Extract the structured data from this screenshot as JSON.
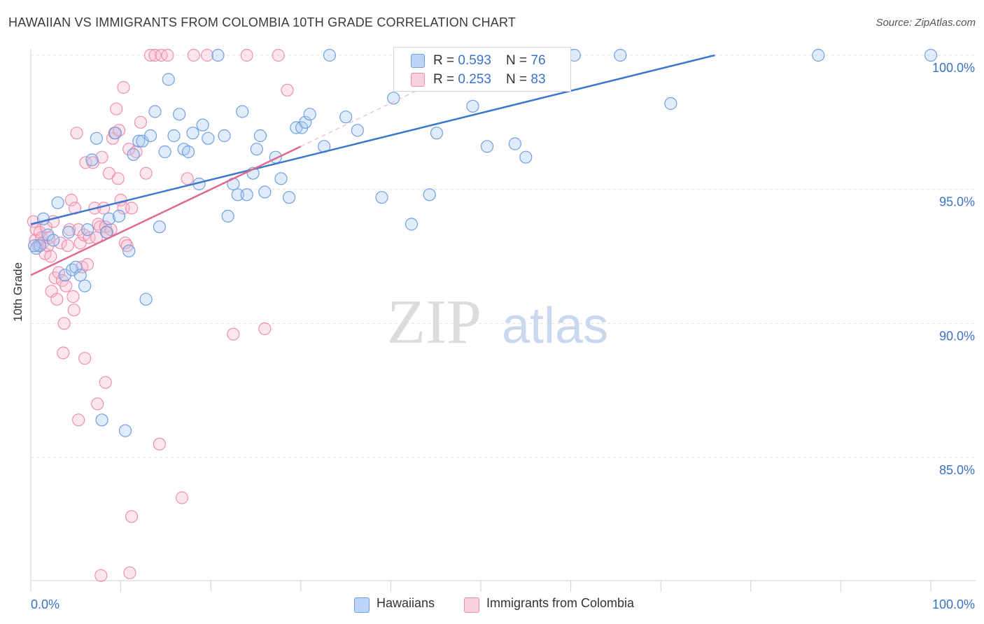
{
  "title": "HAWAIIAN VS IMMIGRANTS FROM COLOMBIA 10TH GRADE CORRELATION CHART",
  "source": "Source: ZipAtlas.com",
  "watermark": {
    "zip": "ZIP",
    "atlas": "atlas"
  },
  "legend_top": [
    {
      "r_label": "R = ",
      "r_value": "0.593",
      "n_label": "N = ",
      "n_value": "76",
      "color": "#a9c8f2"
    },
    {
      "r_label": "R = ",
      "r_value": "0.253",
      "n_label": "N = ",
      "n_value": "83",
      "color": "#f7b8cc"
    }
  ],
  "bottom_legend": [
    "Hawaiians",
    "Immigrants from Colombia"
  ],
  "chart_data": {
    "type": "scatter",
    "title": "HAWAIIAN VS IMMIGRANTS FROM COLOMBIA 10TH GRADE CORRELATION CHART",
    "xlabel": "",
    "ylabel": "10th Grade",
    "xlim": [
      0,
      100
    ],
    "ylim": [
      80.5,
      100.3
    ],
    "x_tick_labels": [
      "0.0%",
      "100.0%"
    ],
    "y_ticks": [
      85.0,
      90.0,
      95.0,
      100.0
    ],
    "y_tick_labels": [
      "85.0%",
      "90.0%",
      "95.0%",
      "100.0%"
    ],
    "grid": true,
    "legend_position": "top-center",
    "colors": {
      "Hawaiians": "#6f9fe0",
      "Immigrants from Colombia": "#ec8fae",
      "blue_line": "#3b78cc",
      "pink_line": "#e0698f"
    },
    "series": [
      {
        "name": "Hawaiians",
        "r": 0.593,
        "n": 76,
        "trend": {
          "x": [
            0,
            76
          ],
          "y": [
            93.7,
            100.0
          ]
        },
        "points": [
          [
            0.6,
            92.8
          ],
          [
            1.0,
            92.9
          ],
          [
            1.4,
            93.9
          ],
          [
            1.9,
            93.3
          ],
          [
            2.5,
            93.1
          ],
          [
            3.0,
            94.5
          ],
          [
            3.8,
            91.8
          ],
          [
            4.2,
            93.4
          ],
          [
            4.6,
            92.0
          ],
          [
            5.0,
            92.1
          ],
          [
            5.5,
            91.8
          ],
          [
            6.0,
            91.4
          ],
          [
            6.3,
            93.5
          ],
          [
            6.8,
            96.1
          ],
          [
            7.3,
            96.9
          ],
          [
            7.9,
            86.4
          ],
          [
            8.4,
            93.4
          ],
          [
            8.7,
            93.9
          ],
          [
            9.4,
            97.1
          ],
          [
            9.8,
            94.0
          ],
          [
            10.5,
            86.0
          ],
          [
            10.9,
            92.7
          ],
          [
            11.4,
            96.3
          ],
          [
            12.0,
            96.8
          ],
          [
            12.4,
            96.8
          ],
          [
            12.8,
            90.9
          ],
          [
            13.3,
            97.0
          ],
          [
            13.8,
            97.9
          ],
          [
            14.3,
            93.6
          ],
          [
            14.9,
            96.4
          ],
          [
            15.3,
            99.1
          ],
          [
            15.9,
            97.0
          ],
          [
            16.5,
            97.8
          ],
          [
            17.0,
            96.5
          ],
          [
            17.5,
            96.4
          ],
          [
            18.0,
            97.1
          ],
          [
            18.7,
            95.2
          ],
          [
            19.1,
            97.4
          ],
          [
            19.7,
            96.9
          ],
          [
            20.8,
            100.0
          ],
          [
            21.5,
            97.0
          ],
          [
            21.9,
            94.0
          ],
          [
            22.5,
            95.2
          ],
          [
            23.0,
            94.8
          ],
          [
            23.5,
            97.9
          ],
          [
            24.0,
            94.8
          ],
          [
            24.7,
            95.6
          ],
          [
            25.1,
            96.5
          ],
          [
            25.5,
            97.0
          ],
          [
            26.0,
            94.9
          ],
          [
            27.2,
            96.2
          ],
          [
            27.8,
            95.4
          ],
          [
            28.7,
            94.7
          ],
          [
            29.5,
            97.3
          ],
          [
            30.1,
            97.3
          ],
          [
            30.5,
            97.5
          ],
          [
            31.0,
            97.8
          ],
          [
            32.6,
            96.6
          ],
          [
            33.2,
            100.0
          ],
          [
            35.0,
            97.7
          ],
          [
            36.3,
            97.2
          ],
          [
            39.0,
            94.7
          ],
          [
            40.3,
            98.4
          ],
          [
            42.3,
            93.7
          ],
          [
            44.3,
            94.8
          ],
          [
            45.1,
            97.1
          ],
          [
            49.1,
            98.1
          ],
          [
            50.7,
            96.6
          ],
          [
            53.8,
            96.7
          ],
          [
            55.0,
            96.2
          ],
          [
            60.4,
            100.0
          ],
          [
            65.5,
            100.0
          ],
          [
            71.1,
            98.2
          ],
          [
            87.5,
            100.0
          ],
          [
            100.0,
            100.0
          ],
          [
            0.4,
            92.9
          ]
        ]
      },
      {
        "name": "Immigrants from Colombia",
        "r": 0.253,
        "n": 83,
        "trend": {
          "x": [
            0,
            30
          ],
          "y": [
            91.8,
            96.6
          ]
        },
        "trend_dashed": {
          "x": [
            30,
            43
          ],
          "y": [
            96.6,
            98.7
          ]
        },
        "points": [
          [
            0.3,
            93.8
          ],
          [
            0.5,
            93.1
          ],
          [
            0.6,
            93.5
          ],
          [
            0.8,
            92.9
          ],
          [
            1.0,
            93.4
          ],
          [
            1.2,
            93.2
          ],
          [
            1.3,
            93.0
          ],
          [
            1.6,
            92.6
          ],
          [
            1.7,
            93.6
          ],
          [
            1.9,
            92.9
          ],
          [
            2.0,
            93.2
          ],
          [
            2.2,
            92.5
          ],
          [
            2.3,
            91.2
          ],
          [
            2.5,
            93.8
          ],
          [
            2.7,
            91.7
          ],
          [
            2.9,
            90.9
          ],
          [
            3.1,
            91.9
          ],
          [
            3.3,
            93.0
          ],
          [
            3.5,
            91.6
          ],
          [
            3.7,
            90.0
          ],
          [
            3.9,
            91.4
          ],
          [
            4.1,
            92.9
          ],
          [
            4.3,
            93.5
          ],
          [
            4.5,
            94.6
          ],
          [
            4.7,
            91.0
          ],
          [
            4.8,
            90.5
          ],
          [
            4.9,
            94.3
          ],
          [
            5.1,
            97.1
          ],
          [
            5.3,
            93.5
          ],
          [
            5.5,
            93.0
          ],
          [
            5.7,
            92.1
          ],
          [
            5.9,
            93.3
          ],
          [
            6.1,
            96.0
          ],
          [
            6.3,
            92.2
          ],
          [
            6.5,
            93.2
          ],
          [
            6.9,
            96.0
          ],
          [
            7.1,
            94.3
          ],
          [
            7.3,
            93.2
          ],
          [
            7.5,
            93.7
          ],
          [
            7.7,
            93.6
          ],
          [
            7.9,
            96.2
          ],
          [
            8.1,
            94.3
          ],
          [
            8.3,
            93.6
          ],
          [
            8.5,
            93.4
          ],
          [
            8.7,
            95.6
          ],
          [
            8.9,
            93.5
          ],
          [
            9.1,
            96.9
          ],
          [
            9.3,
            97.1
          ],
          [
            9.5,
            98.0
          ],
          [
            9.7,
            95.4
          ],
          [
            9.8,
            97.2
          ],
          [
            10.0,
            94.6
          ],
          [
            10.3,
            94.3
          ],
          [
            10.5,
            93.0
          ],
          [
            10.7,
            92.9
          ],
          [
            10.9,
            96.5
          ],
          [
            11.2,
            94.3
          ],
          [
            11.7,
            96.4
          ],
          [
            12.2,
            97.5
          ],
          [
            12.8,
            95.6
          ],
          [
            13.3,
            100.0
          ],
          [
            13.8,
            100.0
          ],
          [
            14.5,
            100.0
          ],
          [
            15.2,
            100.0
          ],
          [
            17.4,
            95.4
          ],
          [
            18.1,
            100.0
          ],
          [
            19.6,
            100.0
          ],
          [
            22.5,
            89.6
          ],
          [
            24.0,
            100.0
          ],
          [
            26.0,
            89.8
          ],
          [
            27.5,
            100.0
          ],
          [
            28.5,
            98.7
          ],
          [
            10.3,
            98.8
          ],
          [
            3.6,
            88.9
          ],
          [
            5.3,
            86.4
          ],
          [
            7.4,
            87.0
          ],
          [
            8.3,
            87.8
          ],
          [
            6.0,
            88.7
          ],
          [
            14.3,
            85.5
          ],
          [
            16.8,
            83.5
          ],
          [
            11.2,
            82.8
          ],
          [
            7.8,
            80.6
          ],
          [
            11.0,
            80.7
          ]
        ]
      }
    ]
  }
}
